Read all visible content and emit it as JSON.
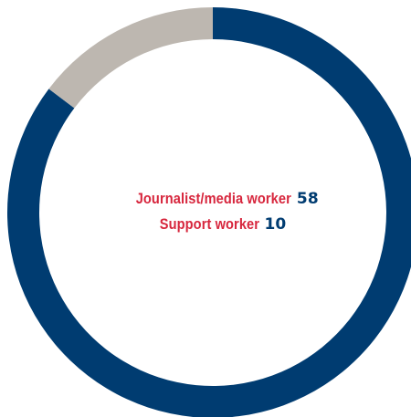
{
  "chart_data": {
    "type": "pie",
    "style": "donut",
    "slices": [
      {
        "label": "Journalist/media worker",
        "value": 58,
        "color": "#003c71"
      },
      {
        "label": "Support worker",
        "value": 10,
        "color": "#bdb7b0"
      }
    ],
    "label_color": "#d7263d",
    "value_color": "#003c71",
    "start": "top",
    "direction": "clockwise"
  }
}
